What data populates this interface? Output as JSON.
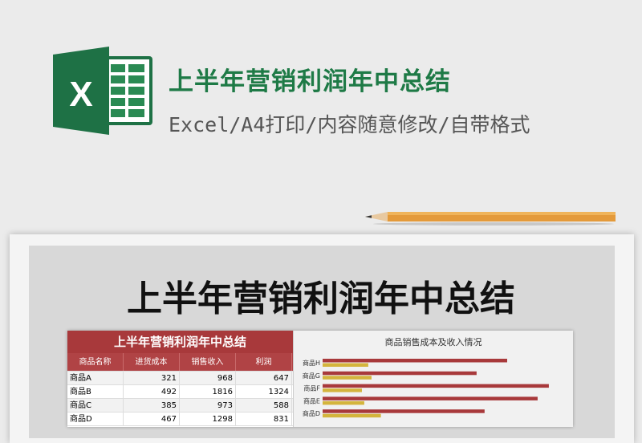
{
  "header": {
    "title": "上半年营销利润年中总结",
    "subtitle": "Excel/A4打印/内容随意修改/自带格式",
    "logo_icon": "excel-logo-icon",
    "brand_color": "#1e7a46"
  },
  "preview": {
    "big_title": "上半年营销利润年中总结",
    "table": {
      "title": "上半年营销利润年中总结",
      "columns": [
        "商品名称",
        "进货成本",
        "销售收入",
        "利润"
      ],
      "rows": [
        [
          "商品A",
          "321",
          "968",
          "647"
        ],
        [
          "商品B",
          "492",
          "1816",
          "1324"
        ],
        [
          "商品C",
          "385",
          "973",
          "588"
        ],
        [
          "商品D",
          "467",
          "1298",
          "831"
        ]
      ]
    }
  },
  "chart_data": {
    "type": "bar",
    "orientation": "horizontal",
    "title": "商品销售成本及收入情况",
    "categories": [
      "商品H",
      "商品G",
      "商品F",
      "商品E",
      "商品D"
    ],
    "series": [
      {
        "values": [
          1479,
          1234,
          1813,
          1723,
          1298
        ],
        "color": "#a8393b"
      },
      {
        "values": [
          366,
          392,
          315,
          334,
          467
        ],
        "color": "#d4b43c"
      }
    ]
  }
}
